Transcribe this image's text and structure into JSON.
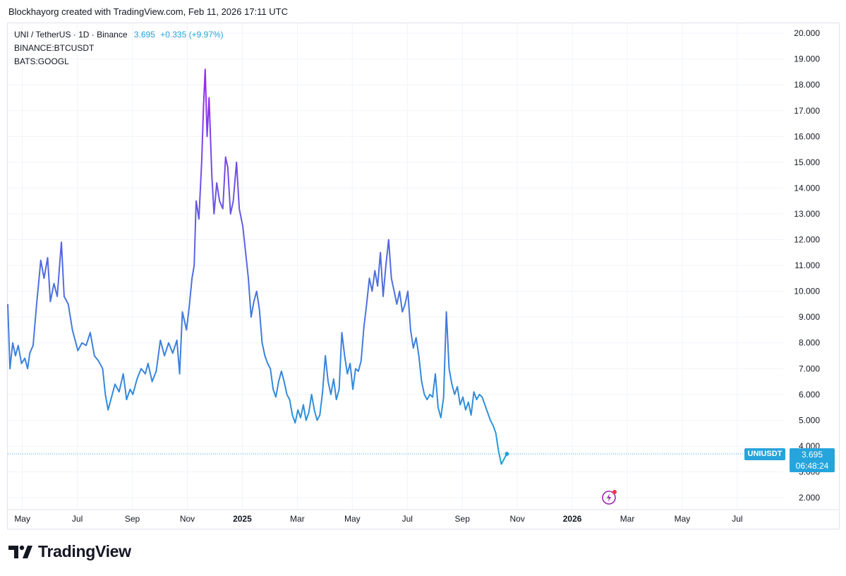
{
  "header": {
    "attribution": "Blockhayorg created with TradingView.com, Feb 11, 2026 17:11 UTC"
  },
  "legend": {
    "main_symbol": "UNI / TetherUS · 1D · Binance",
    "last_price": "3.695",
    "change": "+0.335 (+9.97%)",
    "compare_1": "BINANCE:BTCUSDT",
    "compare_2": "BATS:GOOGL"
  },
  "price_tag": {
    "symbol": "UNIUSDT",
    "price": "3.695",
    "countdown": "06:48:24"
  },
  "footer": {
    "brand": "TradingView"
  },
  "colors": {
    "line_start": "#8a2be2",
    "line_end": "#1e9fd8",
    "grid": "#f0f3fa",
    "price_line": "#26a4dc"
  },
  "chart_data": {
    "type": "line",
    "title": "UNI / TetherUS · 1D · Binance",
    "xlabel": "",
    "ylabel": "",
    "ylim": [
      1.5,
      20.6
    ],
    "y_ticks": [
      "2.000",
      "3.000",
      "4.000",
      "5.000",
      "6.000",
      "7.000",
      "8.000",
      "9.000",
      "10.000",
      "11.000",
      "12.000",
      "13.000",
      "14.000",
      "15.000",
      "16.000",
      "17.000",
      "18.000",
      "19.000",
      "20.000"
    ],
    "x_ticks": [
      {
        "label": "May",
        "x": 0.53
      },
      {
        "label": "Jul",
        "x": 2.53
      },
      {
        "label": "Sep",
        "x": 4.53
      },
      {
        "label": "Nov",
        "x": 6.53
      },
      {
        "label": "2025",
        "x": 8.53,
        "bold": true
      },
      {
        "label": "Mar",
        "x": 10.53
      },
      {
        "label": "May",
        "x": 12.53
      },
      {
        "label": "Jul",
        "x": 14.53
      },
      {
        "label": "Sep",
        "x": 16.53
      },
      {
        "label": "Nov",
        "x": 18.53
      },
      {
        "label": "2026",
        "x": 20.53,
        "bold": true
      },
      {
        "label": "Mar",
        "x": 22.53
      },
      {
        "label": "May",
        "x": 24.53
      },
      {
        "label": "Jul",
        "x": 26.53
      }
    ],
    "x_range_months": [
      0,
      28.2
    ],
    "last_value": 3.695,
    "series": [
      {
        "name": "UNIUSDT",
        "points": [
          [
            0.0,
            9.5
          ],
          [
            0.08,
            7.0
          ],
          [
            0.18,
            8.0
          ],
          [
            0.28,
            7.5
          ],
          [
            0.38,
            7.9
          ],
          [
            0.5,
            7.2
          ],
          [
            0.62,
            7.4
          ],
          [
            0.72,
            7.0
          ],
          [
            0.8,
            7.6
          ],
          [
            0.92,
            7.9
          ],
          [
            1.05,
            9.5
          ],
          [
            1.2,
            11.2
          ],
          [
            1.32,
            10.5
          ],
          [
            1.45,
            11.3
          ],
          [
            1.55,
            9.6
          ],
          [
            1.68,
            10.3
          ],
          [
            1.8,
            9.8
          ],
          [
            1.95,
            11.9
          ],
          [
            2.05,
            9.8
          ],
          [
            2.2,
            9.5
          ],
          [
            2.35,
            8.5
          ],
          [
            2.45,
            8.1
          ],
          [
            2.55,
            7.7
          ],
          [
            2.7,
            8.0
          ],
          [
            2.85,
            7.9
          ],
          [
            3.0,
            8.4
          ],
          [
            3.15,
            7.5
          ],
          [
            3.3,
            7.3
          ],
          [
            3.45,
            7.0
          ],
          [
            3.55,
            6.0
          ],
          [
            3.65,
            5.4
          ],
          [
            3.8,
            6.0
          ],
          [
            3.9,
            6.4
          ],
          [
            4.05,
            6.1
          ],
          [
            4.2,
            6.8
          ],
          [
            4.32,
            5.8
          ],
          [
            4.45,
            6.2
          ],
          [
            4.55,
            6.0
          ],
          [
            4.7,
            6.6
          ],
          [
            4.85,
            7.0
          ],
          [
            5.0,
            6.8
          ],
          [
            5.1,
            7.2
          ],
          [
            5.25,
            6.5
          ],
          [
            5.4,
            6.9
          ],
          [
            5.55,
            8.1
          ],
          [
            5.7,
            7.5
          ],
          [
            5.85,
            8.0
          ],
          [
            6.0,
            7.6
          ],
          [
            6.15,
            8.1
          ],
          [
            6.25,
            6.8
          ],
          [
            6.35,
            9.2
          ],
          [
            6.5,
            8.5
          ],
          [
            6.6,
            9.4
          ],
          [
            6.7,
            10.5
          ],
          [
            6.78,
            11.0
          ],
          [
            6.85,
            13.5
          ],
          [
            6.95,
            12.8
          ],
          [
            7.05,
            15.0
          ],
          [
            7.12,
            17.2
          ],
          [
            7.18,
            18.6
          ],
          [
            7.25,
            16.0
          ],
          [
            7.32,
            17.5
          ],
          [
            7.42,
            14.5
          ],
          [
            7.5,
            13.0
          ],
          [
            7.6,
            14.2
          ],
          [
            7.7,
            13.5
          ],
          [
            7.82,
            13.2
          ],
          [
            7.92,
            15.2
          ],
          [
            8.0,
            14.8
          ],
          [
            8.1,
            13.0
          ],
          [
            8.2,
            13.5
          ],
          [
            8.32,
            15.0
          ],
          [
            8.42,
            13.2
          ],
          [
            8.55,
            12.5
          ],
          [
            8.65,
            11.5
          ],
          [
            8.75,
            10.5
          ],
          [
            8.85,
            9.0
          ],
          [
            8.95,
            9.6
          ],
          [
            9.05,
            10.0
          ],
          [
            9.15,
            9.3
          ],
          [
            9.25,
            8.0
          ],
          [
            9.35,
            7.5
          ],
          [
            9.45,
            7.2
          ],
          [
            9.55,
            7.0
          ],
          [
            9.65,
            6.2
          ],
          [
            9.75,
            5.9
          ],
          [
            9.85,
            6.5
          ],
          [
            9.95,
            6.9
          ],
          [
            10.05,
            6.5
          ],
          [
            10.15,
            6.0
          ],
          [
            10.25,
            5.8
          ],
          [
            10.35,
            5.2
          ],
          [
            10.45,
            4.9
          ],
          [
            10.55,
            5.4
          ],
          [
            10.65,
            5.1
          ],
          [
            10.75,
            5.6
          ],
          [
            10.85,
            5.0
          ],
          [
            10.95,
            5.3
          ],
          [
            11.05,
            6.0
          ],
          [
            11.15,
            5.4
          ],
          [
            11.25,
            5.0
          ],
          [
            11.35,
            5.2
          ],
          [
            11.45,
            6.1
          ],
          [
            11.55,
            7.5
          ],
          [
            11.65,
            6.5
          ],
          [
            11.75,
            6.0
          ],
          [
            11.85,
            6.6
          ],
          [
            11.95,
            5.8
          ],
          [
            12.05,
            6.2
          ],
          [
            12.15,
            8.4
          ],
          [
            12.25,
            7.5
          ],
          [
            12.35,
            6.8
          ],
          [
            12.45,
            7.2
          ],
          [
            12.55,
            6.2
          ],
          [
            12.65,
            7.0
          ],
          [
            12.75,
            6.9
          ],
          [
            12.85,
            7.3
          ],
          [
            12.95,
            8.6
          ],
          [
            13.05,
            9.5
          ],
          [
            13.15,
            10.5
          ],
          [
            13.25,
            10.0
          ],
          [
            13.35,
            10.8
          ],
          [
            13.45,
            10.2
          ],
          [
            13.55,
            11.5
          ],
          [
            13.65,
            9.8
          ],
          [
            13.75,
            11.0
          ],
          [
            13.85,
            12.0
          ],
          [
            13.95,
            10.5
          ],
          [
            14.05,
            10.0
          ],
          [
            14.15,
            9.5
          ],
          [
            14.25,
            10.0
          ],
          [
            14.35,
            9.2
          ],
          [
            14.45,
            9.5
          ],
          [
            14.55,
            10.0
          ],
          [
            14.65,
            8.5
          ],
          [
            14.75,
            7.8
          ],
          [
            14.85,
            8.2
          ],
          [
            14.95,
            7.5
          ],
          [
            15.05,
            6.5
          ],
          [
            15.15,
            6.0
          ],
          [
            15.25,
            5.8
          ],
          [
            15.35,
            6.0
          ],
          [
            15.45,
            5.9
          ],
          [
            15.55,
            6.8
          ],
          [
            15.65,
            5.5
          ],
          [
            15.75,
            5.1
          ],
          [
            15.85,
            5.9
          ],
          [
            15.95,
            9.2
          ],
          [
            16.05,
            7.0
          ],
          [
            16.15,
            6.4
          ],
          [
            16.25,
            6.0
          ],
          [
            16.35,
            6.3
          ],
          [
            16.45,
            5.6
          ],
          [
            16.55,
            5.9
          ],
          [
            16.65,
            5.4
          ],
          [
            16.75,
            5.7
          ],
          [
            16.85,
            5.2
          ],
          [
            16.95,
            6.1
          ],
          [
            17.05,
            5.8
          ],
          [
            17.15,
            6.0
          ],
          [
            17.25,
            5.9
          ],
          [
            17.35,
            5.6
          ],
          [
            17.45,
            5.3
          ],
          [
            17.55,
            5.0
          ],
          [
            17.65,
            4.8
          ],
          [
            17.75,
            4.5
          ],
          [
            17.85,
            3.8
          ],
          [
            17.95,
            3.3
          ],
          [
            18.05,
            3.5
          ],
          [
            18.15,
            3.695
          ]
        ]
      }
    ]
  }
}
